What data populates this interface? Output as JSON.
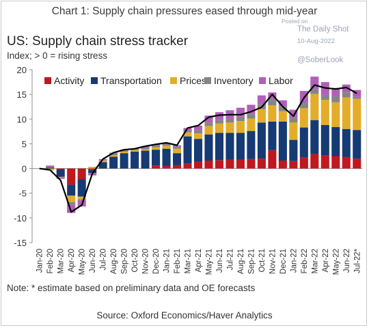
{
  "header": {
    "title": "Chart 1: Supply chain pressures eased through mid-year"
  },
  "watermark": {
    "posted_on": "Posted on",
    "site": "The Daily Shot",
    "date": "10-Aug-2022",
    "handle": "@SoberLook"
  },
  "footer": {
    "note": "Note: * estimate based on preliminary data and OE forecasts",
    "source": "Source: Oxford Economics/Haver Analytics"
  },
  "chart_data": {
    "type": "bar",
    "stacked": true,
    "title": "US: Supply chain stress tracker",
    "subtitle": "Index; > 0 = rising stress",
    "xlabel": "",
    "ylabel": "",
    "ylim": [
      -15,
      20
    ],
    "yticks": [
      -15,
      -10,
      -5,
      0,
      5,
      10,
      15,
      20
    ],
    "grid": false,
    "legend_position": "top",
    "categories": [
      "Jan-20",
      "Feb-20",
      "Mar-20",
      "Apr-20",
      "May-20",
      "Jun-20",
      "Jul-20",
      "Aug-20",
      "Sep-20",
      "Oct-20",
      "Nov-20",
      "Dec-20",
      "Jan-21",
      "Feb-21",
      "Mar-21",
      "Apr-21",
      "May-21",
      "Jun-21",
      "Jul-21",
      "Aug-21",
      "Sep-21",
      "Oct-21",
      "Nov-21",
      "Dec-21",
      "Jan-22",
      "Feb-22",
      "Mar-22",
      "Apr-22",
      "May-22",
      "Jun-22",
      "Jul-22*"
    ],
    "series": [
      {
        "name": "Activity",
        "color": "#c0181f",
        "values": [
          0,
          0,
          -0.2,
          -3.3,
          -2.2,
          -0.3,
          0,
          0,
          0,
          0,
          0,
          0.6,
          0.5,
          0.7,
          1.0,
          1.4,
          1.6,
          1.7,
          1.8,
          1.8,
          1.9,
          2.0,
          3.7,
          1.6,
          1.5,
          2.2,
          2.9,
          2.6,
          2.5,
          2.3,
          2.0
        ]
      },
      {
        "name": "Transportation",
        "color": "#163a73",
        "values": [
          0,
          0.2,
          -1.5,
          -2.2,
          -3.5,
          -0.6,
          1.3,
          2.4,
          3.1,
          3.4,
          3.6,
          3.2,
          3.5,
          2.4,
          5.5,
          4.6,
          5.3,
          5.5,
          5.4,
          5.4,
          5.7,
          7.3,
          5.8,
          7.9,
          4.3,
          6.1,
          6.9,
          6.2,
          5.9,
          5.7,
          5.8
        ]
      },
      {
        "name": "Prices",
        "color": "#e3ad2a",
        "values": [
          0,
          -0.4,
          -0.1,
          -1.3,
          -0.5,
          0.2,
          0.3,
          0.3,
          0.3,
          0.3,
          0.3,
          0.5,
          0.6,
          0.9,
          0.8,
          1.1,
          1.7,
          1.9,
          2.1,
          2.4,
          2.5,
          2.7,
          3.3,
          2.1,
          3.5,
          3.9,
          5.3,
          5.1,
          5.0,
          6.4,
          6.3
        ]
      },
      {
        "name": "Inventory",
        "color": "#858585",
        "values": [
          0,
          0.1,
          0,
          -0.5,
          -0.2,
          0.1,
          0.1,
          0.3,
          0.2,
          0.1,
          0.2,
          0.3,
          0.3,
          0.4,
          0.4,
          0.6,
          0.7,
          0.7,
          0.8,
          0.9,
          1.0,
          1.0,
          1.2,
          0.9,
          1.0,
          1.1,
          1.0,
          1.0,
          1.2,
          1.0,
          0.4
        ]
      },
      {
        "name": "Labor",
        "color": "#b060b8",
        "values": [
          0,
          0.3,
          -0.3,
          -1.7,
          -1.3,
          -0.5,
          0.2,
          0.2,
          0.2,
          0.2,
          0.4,
          0.3,
          0.3,
          0.3,
          0.5,
          1.0,
          1.4,
          1.6,
          1.7,
          1.8,
          1.8,
          1.8,
          1.4,
          1.3,
          1.6,
          2.4,
          2.5,
          2.6,
          1.7,
          1.6,
          1.4
        ]
      }
    ],
    "total": {
      "name": "Total",
      "color": "#000000",
      "values": [
        0,
        -0.3,
        -2.4,
        -8.8,
        -7.4,
        -1.0,
        1.9,
        3.2,
        3.8,
        4.0,
        4.5,
        4.9,
        5.2,
        4.7,
        8.2,
        8.7,
        10.4,
        10.8,
        10.9,
        10.9,
        11.5,
        12.4,
        15.0,
        12.5,
        10.6,
        14.3,
        16.9,
        16.3,
        16.1,
        16.4,
        15.2
      ]
    }
  }
}
